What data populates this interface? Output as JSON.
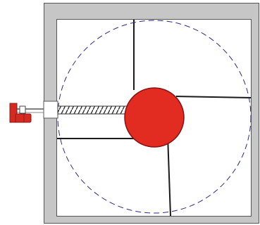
{
  "colors": {
    "background": "#ffffff",
    "enclosure": "#c6c6c6",
    "enclosure_border": "#555555",
    "chamber": "#ffffff",
    "partition": "#1a1a1a",
    "rotation_circle": "#2a2a8a",
    "rotor": "#e22c22",
    "rotor_border": "#8a1010",
    "shaft": "#333333",
    "actuator": "#d42a22",
    "actuator_dark": "#8a1a14"
  },
  "components": {
    "enclosure": "square-frame",
    "partitions": 4,
    "rotation_path": "dashed-circle",
    "rotor": "filled-circle",
    "drive_shaft": "threaded-rod",
    "actuator": "motor"
  }
}
